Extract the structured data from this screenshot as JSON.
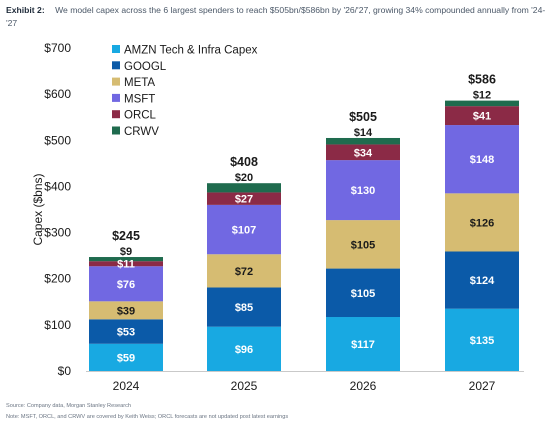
{
  "header": {
    "exhibit": "Exhibit 2:",
    "text": "We model capex across the 6 largest spenders to reach $505bn/$586bn by '26/'27, growing 34% compounded annually from '24-'27"
  },
  "footer": {
    "source": "Source: Company data, Morgan Stanley Research",
    "note": "Note: MSFT, ORCL, and CRWV are covered by Keith Weiss; ORCL forecasts are not updated post latest earnings"
  },
  "chart_data": {
    "type": "bar",
    "stacked": true,
    "categories": [
      "2024",
      "2025",
      "2026",
      "2027"
    ],
    "ylabel": "Capex ($bns)",
    "ylim": [
      0,
      700
    ],
    "yticks": [
      "$0",
      "$100",
      "$200",
      "$300",
      "$400",
      "$500",
      "$600",
      "$700"
    ],
    "legend_position": "top-left",
    "grid": false,
    "totals": [
      "$245",
      "$408",
      "$505",
      "$586"
    ],
    "series": [
      {
        "name": "AMZN Tech & Infra Capex",
        "color": "#18a9e2",
        "values": [
          59,
          96,
          117,
          135
        ],
        "labels": [
          "$59",
          "$96",
          "$117",
          "$135"
        ],
        "label_dark": false
      },
      {
        "name": "GOOGL",
        "color": "#0b5aa8",
        "values": [
          53,
          85,
          105,
          124
        ],
        "labels": [
          "$53",
          "$85",
          "$105",
          "$124"
        ],
        "label_dark": false
      },
      {
        "name": "META",
        "color": "#d6bc72",
        "values": [
          39,
          72,
          105,
          126
        ],
        "labels": [
          "$39",
          "$72",
          "$105",
          "$126"
        ],
        "label_dark": true
      },
      {
        "name": "MSFT",
        "color": "#7168e2",
        "values": [
          76,
          107,
          130,
          148
        ],
        "labels": [
          "$76",
          "$107",
          "$130",
          "$148"
        ],
        "label_dark": false
      },
      {
        "name": "ORCL",
        "color": "#8b2a46",
        "values": [
          11,
          27,
          34,
          41
        ],
        "labels": [
          "$11",
          "$27",
          "$34",
          "$41"
        ],
        "label_dark": false
      },
      {
        "name": "CRWV",
        "color": "#1f6b4e",
        "values": [
          9,
          20,
          14,
          12
        ],
        "labels": [
          "$9",
          "$20",
          "$14",
          "$12"
        ],
        "label_dark": false
      }
    ]
  }
}
